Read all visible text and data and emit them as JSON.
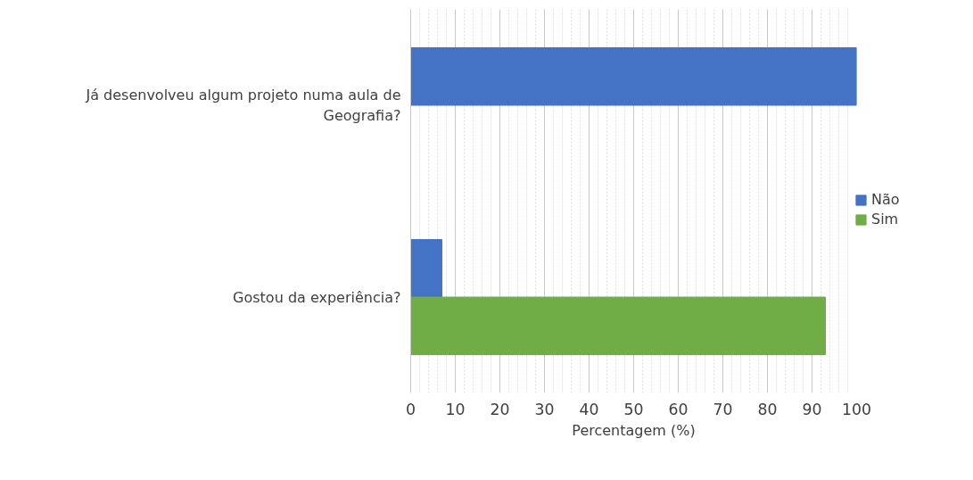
{
  "chart_data": {
    "type": "bar",
    "orientation": "horizontal",
    "xlabel": "Percentagem (%)",
    "categories": [
      "Já desenvolveu algum projeto numa aula de Geografia?",
      "Gostou da experiência?"
    ],
    "series": [
      {
        "name": "Não",
        "color": "#4472c4",
        "values": [
          100,
          7
        ]
      },
      {
        "name": "Sim",
        "color": "#70ad47",
        "values": [
          0,
          93
        ]
      }
    ],
    "xlim": [
      0,
      100
    ],
    "xticks": [
      0,
      10,
      20,
      30,
      40,
      50,
      60,
      70,
      80,
      90,
      100
    ],
    "grid": "x",
    "legend": "right"
  }
}
